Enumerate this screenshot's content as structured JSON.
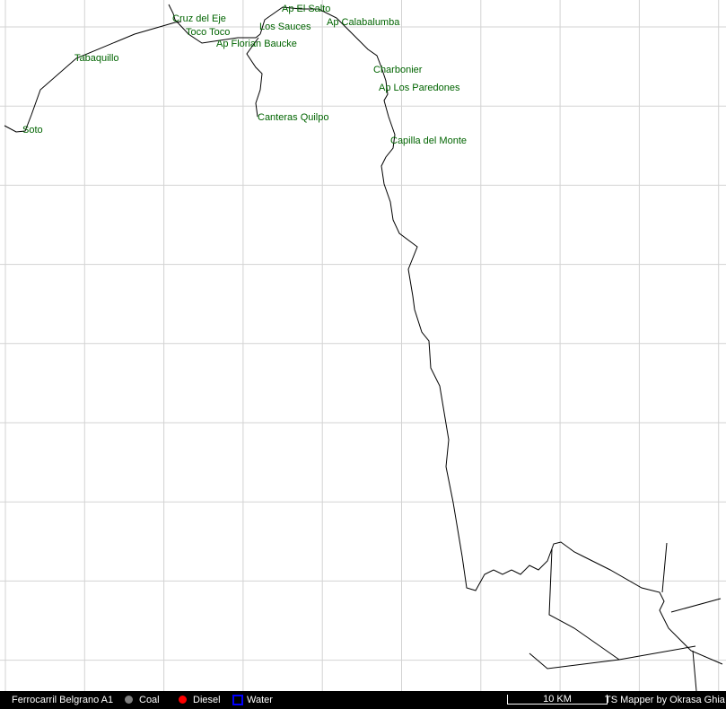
{
  "map": {
    "grid": true,
    "colors": {
      "track": "#000000",
      "label": "#006400",
      "grid": "#d3d3d3",
      "footer_bg": "#000000"
    },
    "stations": [
      {
        "name": "Cruz del Eje"
      },
      {
        "name": "Toco Toco"
      },
      {
        "name": "Ap Florian Baucke"
      },
      {
        "name": "Los Sauces"
      },
      {
        "name": "Ap El Salto"
      },
      {
        "name": "Ap Calabalumba"
      },
      {
        "name": "Charbonier"
      },
      {
        "name": "Ap Los Paredones"
      },
      {
        "name": "Canteras Quilpo"
      },
      {
        "name": "Capilla del Monte"
      },
      {
        "name": "Tabaquillo"
      },
      {
        "name": "Soto"
      }
    ]
  },
  "footer": {
    "route": "Ferrocarril Belgrano A1",
    "legend": [
      {
        "label": "Coal",
        "color": "#808080",
        "icon": "circle"
      },
      {
        "label": "Diesel",
        "color": "#ff0000",
        "icon": "circle"
      },
      {
        "label": "Water",
        "color": "#0000ff",
        "icon": "square-outline"
      }
    ],
    "scale": "10 KM",
    "credit": "TS Mapper by Okrasa Ghia"
  }
}
